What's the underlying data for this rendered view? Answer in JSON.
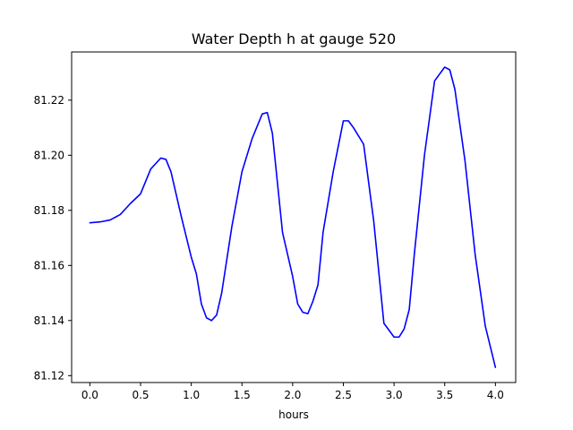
{
  "chart_data": {
    "type": "line",
    "title": "Water Depth h at gauge 520",
    "xlabel": "hours",
    "ylabel": "",
    "xlim": [
      -0.18,
      4.2
    ],
    "ylim": [
      81.1175,
      81.2375
    ],
    "xticks": [
      0.0,
      0.5,
      1.0,
      1.5,
      2.0,
      2.5,
      3.0,
      3.5,
      4.0
    ],
    "xtick_labels": [
      "0.0",
      "0.5",
      "1.0",
      "1.5",
      "2.0",
      "2.5",
      "3.0",
      "3.5",
      "4.0"
    ],
    "yticks": [
      81.12,
      81.14,
      81.16,
      81.18,
      81.2,
      81.22
    ],
    "ytick_labels": [
      "81.12",
      "81.14",
      "81.16",
      "81.18",
      "81.20",
      "81.22"
    ],
    "grid": false,
    "legend": "none",
    "series": [
      {
        "color": "#0000ff",
        "x": [
          0.0,
          0.1,
          0.2,
          0.3,
          0.4,
          0.5,
          0.6,
          0.7,
          0.75,
          0.8,
          0.9,
          1.0,
          1.05,
          1.1,
          1.15,
          1.2,
          1.25,
          1.3,
          1.4,
          1.5,
          1.6,
          1.7,
          1.75,
          1.8,
          1.9,
          2.0,
          2.05,
          2.1,
          2.15,
          2.2,
          2.25,
          2.3,
          2.4,
          2.5,
          2.55,
          2.6,
          2.7,
          2.8,
          2.9,
          3.0,
          3.05,
          3.1,
          3.15,
          3.2,
          3.3,
          3.4,
          3.5,
          3.55,
          3.6,
          3.7,
          3.8,
          3.9,
          4.0
        ],
        "y": [
          81.1755,
          81.1758,
          81.1765,
          81.1785,
          81.1825,
          81.186,
          81.195,
          81.199,
          81.1985,
          81.194,
          81.178,
          81.163,
          81.157,
          81.146,
          81.141,
          81.14,
          81.142,
          81.15,
          81.174,
          81.194,
          81.206,
          81.215,
          81.2155,
          81.208,
          81.172,
          81.156,
          81.146,
          81.143,
          81.1425,
          81.147,
          81.153,
          81.172,
          81.194,
          81.2125,
          81.2125,
          81.21,
          81.204,
          81.176,
          81.139,
          81.134,
          81.134,
          81.137,
          81.144,
          81.164,
          81.2,
          81.227,
          81.232,
          81.231,
          81.224,
          81.198,
          81.164,
          81.138,
          81.123
        ]
      }
    ]
  }
}
